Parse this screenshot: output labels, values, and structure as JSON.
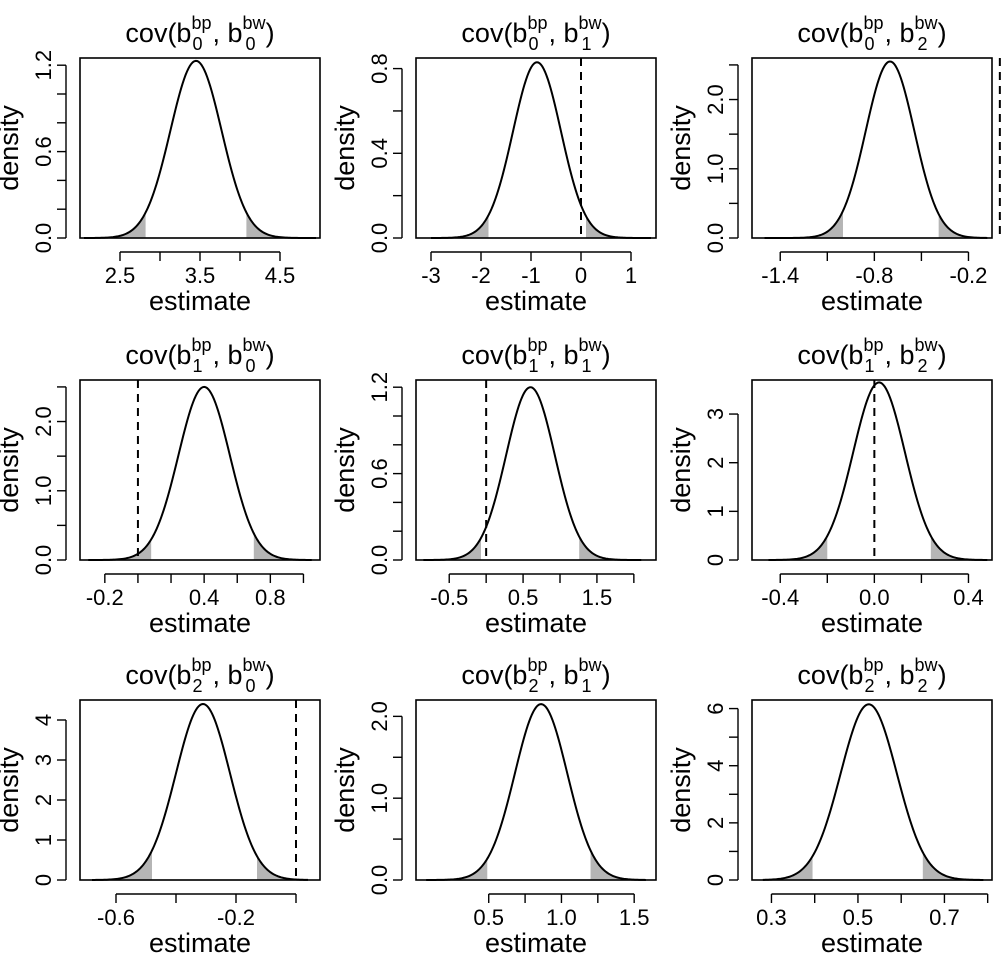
{
  "chart_data": [
    {
      "type": "area",
      "title": {
        "base": "cov(b",
        "sub1": "0",
        "sup1": "bp",
        "sep": ", b",
        "sub2": "0",
        "sup2": "bw",
        "close": ")"
      },
      "xlabel": "estimate",
      "ylabel": "density",
      "xlim": [
        2.0,
        5.0
      ],
      "ylim": [
        0,
        1.25
      ],
      "xticks": [
        2.5,
        3.0,
        3.5,
        4.0,
        4.5
      ],
      "xtick_labels": [
        "2.5",
        "",
        "3.5",
        "",
        "4.5"
      ],
      "yticks": [
        0.0,
        0.2,
        0.4,
        0.6,
        0.8,
        1.0,
        1.2
      ],
      "ytick_labels": [
        "0.0",
        "",
        "",
        "0.6",
        "",
        "",
        "1.2"
      ],
      "mean": 3.45,
      "sd": 0.32,
      "peak": 1.23,
      "range": [
        2.05,
        4.95
      ],
      "ci": [
        2.82,
        4.08
      ],
      "reference_line": null
    },
    {
      "type": "area",
      "title": {
        "base": "cov(b",
        "sub1": "0",
        "sup1": "bp",
        "sep": ", b",
        "sub2": "1",
        "sup2": "bw",
        "close": ")"
      },
      "xlabel": "estimate",
      "ylabel": "density",
      "xlim": [
        -3.3,
        1.5
      ],
      "ylim": [
        0,
        0.85
      ],
      "xticks": [
        -3,
        -2,
        -1,
        0,
        1
      ],
      "xtick_labels": [
        "-3",
        "-2",
        "-1",
        "0",
        "1"
      ],
      "yticks": [
        0.0,
        0.2,
        0.4,
        0.6,
        0.8
      ],
      "ytick_labels": [
        "0.0",
        "",
        "0.4",
        "",
        "0.8"
      ],
      "mean": -0.88,
      "sd": 0.48,
      "peak": 0.83,
      "range": [
        -3.0,
        1.4
      ],
      "ci": [
        -1.85,
        0.1
      ],
      "reference_line": 0
    },
    {
      "type": "area",
      "title": {
        "base": "cov(b",
        "sub1": "0",
        "sup1": "bp",
        "sep": ", b",
        "sub2": "2",
        "sup2": "bw",
        "close": ")"
      },
      "xlabel": "estimate",
      "ylabel": "density",
      "xlim": [
        -1.58,
        -0.05
      ],
      "ylim": [
        0,
        2.6
      ],
      "xticks": [
        -1.4,
        -1.1,
        -0.8,
        -0.5,
        -0.2
      ],
      "xtick_labels": [
        "-1.4",
        "",
        "-0.8",
        "",
        "-0.2"
      ],
      "yticks": [
        0.0,
        0.5,
        1.0,
        1.5,
        2.0,
        2.5
      ],
      "ytick_labels": [
        "0.0",
        "",
        "1.0",
        "",
        "2.0",
        ""
      ],
      "mean": -0.7,
      "sd": 0.155,
      "peak": 2.55,
      "range": [
        -1.5,
        -0.08
      ],
      "ci": [
        -1.0,
        -0.39
      ],
      "reference_line": 0
    },
    {
      "type": "area",
      "title": {
        "base": "cov(b",
        "sub1": "1",
        "sup1": "bp",
        "sep": ", b",
        "sub2": "0",
        "sup2": "bw",
        "close": ")"
      },
      "xlabel": "estimate",
      "ylabel": "density",
      "xlim": [
        -0.35,
        1.1
      ],
      "ylim": [
        0,
        2.6
      ],
      "xticks": [
        -0.2,
        0.0,
        0.2,
        0.4,
        0.6,
        0.8,
        1.0
      ],
      "xtick_labels": [
        "-0.2",
        "",
        "",
        "0.4",
        "",
        "0.8",
        ""
      ],
      "yticks": [
        0.0,
        0.5,
        1.0,
        1.5,
        2.0,
        2.5
      ],
      "ytick_labels": [
        "0.0",
        "",
        "1.0",
        "",
        "2.0",
        ""
      ],
      "mean": 0.4,
      "sd": 0.155,
      "peak": 2.5,
      "range": [
        -0.3,
        1.05
      ],
      "ci": [
        0.08,
        0.7
      ],
      "reference_line": 0
    },
    {
      "type": "area",
      "title": {
        "base": "cov(b",
        "sub1": "1",
        "sup1": "bp",
        "sep": ", b",
        "sub2": "1",
        "sup2": "bw",
        "close": ")"
      },
      "xlabel": "estimate",
      "ylabel": "density",
      "xlim": [
        -0.95,
        2.3
      ],
      "ylim": [
        0,
        1.25
      ],
      "xticks": [
        -0.5,
        0.0,
        0.5,
        1.0,
        1.5,
        2.0
      ],
      "xtick_labels": [
        "-0.5",
        "",
        "0.5",
        "",
        "1.5",
        ""
      ],
      "yticks": [
        0.0,
        0.2,
        0.4,
        0.6,
        0.8,
        1.0,
        1.2
      ],
      "ytick_labels": [
        "0.0",
        "",
        "",
        "0.6",
        "",
        "",
        "1.2"
      ],
      "mean": 0.6,
      "sd": 0.33,
      "peak": 1.2,
      "range": [
        -0.85,
        2.1
      ],
      "ci": [
        -0.07,
        1.26
      ],
      "reference_line": 0
    },
    {
      "type": "area",
      "title": {
        "base": "cov(b",
        "sub1": "1",
        "sup1": "bp",
        "sep": ", b",
        "sub2": "2",
        "sup2": "bw",
        "close": ")"
      },
      "xlabel": "estimate",
      "ylabel": "density",
      "xlim": [
        -0.52,
        0.5
      ],
      "ylim": [
        0,
        3.7
      ],
      "xticks": [
        -0.4,
        -0.2,
        0.0,
        0.2,
        0.4
      ],
      "xtick_labels": [
        "-0.4",
        "",
        "0.0",
        "",
        "0.4"
      ],
      "yticks": [
        0,
        1,
        2,
        3
      ],
      "ytick_labels": [
        "0",
        "1",
        "2",
        "3"
      ],
      "mean": 0.02,
      "sd": 0.11,
      "peak": 3.65,
      "range": [
        -0.45,
        0.48
      ],
      "ci": [
        -0.2,
        0.24
      ],
      "reference_line": 0
    },
    {
      "type": "area",
      "title": {
        "base": "cov(b",
        "sub1": "2",
        "sup1": "bp",
        "sep": ", b",
        "sub2": "0",
        "sup2": "bw",
        "close": ")"
      },
      "xlabel": "estimate",
      "ylabel": "density",
      "xlim": [
        -0.72,
        0.08
      ],
      "ylim": [
        0,
        4.5
      ],
      "xticks": [
        -0.6,
        -0.4,
        -0.2,
        0.0
      ],
      "xtick_labels": [
        "-0.6",
        "",
        "-0.2",
        ""
      ],
      "yticks": [
        0,
        1,
        2,
        3,
        4
      ],
      "ytick_labels": [
        "0",
        "1",
        "2",
        "3",
        "4"
      ],
      "mean": -0.31,
      "sd": 0.09,
      "peak": 4.4,
      "range": [
        -0.68,
        0.04
      ],
      "ci": [
        -0.48,
        -0.13
      ],
      "reference_line": 0
    },
    {
      "type": "area",
      "title": {
        "base": "cov(b",
        "sub1": "2",
        "sup1": "bp",
        "sep": ", b",
        "sub2": "1",
        "sup2": "bw",
        "close": ")"
      },
      "xlabel": "estimate",
      "ylabel": "density",
      "xlim": [
        0.0,
        1.65
      ],
      "ylim": [
        0,
        2.2
      ],
      "xticks": [
        0.5,
        0.75,
        1.0,
        1.25,
        1.5
      ],
      "xtick_labels": [
        "0.5",
        "",
        "1.0",
        "",
        "1.5"
      ],
      "yticks": [
        0.0,
        0.5,
        1.0,
        1.5,
        2.0
      ],
      "ytick_labels": [
        "0.0",
        "",
        "1.0",
        "",
        "2.0"
      ],
      "mean": 0.86,
      "sd": 0.18,
      "peak": 2.15,
      "range": [
        0.07,
        1.58
      ],
      "ci": [
        0.49,
        1.2
      ],
      "reference_line": null
    },
    {
      "type": "area",
      "title": {
        "base": "cov(b",
        "sub1": "2",
        "sup1": "bp",
        "sep": ", b",
        "sub2": "2",
        "sup2": "bw",
        "close": ")"
      },
      "xlabel": "estimate",
      "ylabel": "density",
      "xlim": [
        0.255,
        0.81
      ],
      "ylim": [
        0,
        6.3
      ],
      "xticks": [
        0.3,
        0.4,
        0.5,
        0.6,
        0.7,
        0.8
      ],
      "xtick_labels": [
        "0.3",
        "",
        "0.5",
        "",
        "0.7",
        ""
      ],
      "yticks": [
        0,
        1,
        2,
        3,
        4,
        5,
        6
      ],
      "ytick_labels": [
        "0",
        "",
        "2",
        "",
        "4",
        "",
        "6"
      ],
      "mean": 0.525,
      "sd": 0.065,
      "peak": 6.15,
      "range": [
        0.28,
        0.79
      ],
      "ci": [
        0.395,
        0.65
      ],
      "reference_line": null
    }
  ]
}
